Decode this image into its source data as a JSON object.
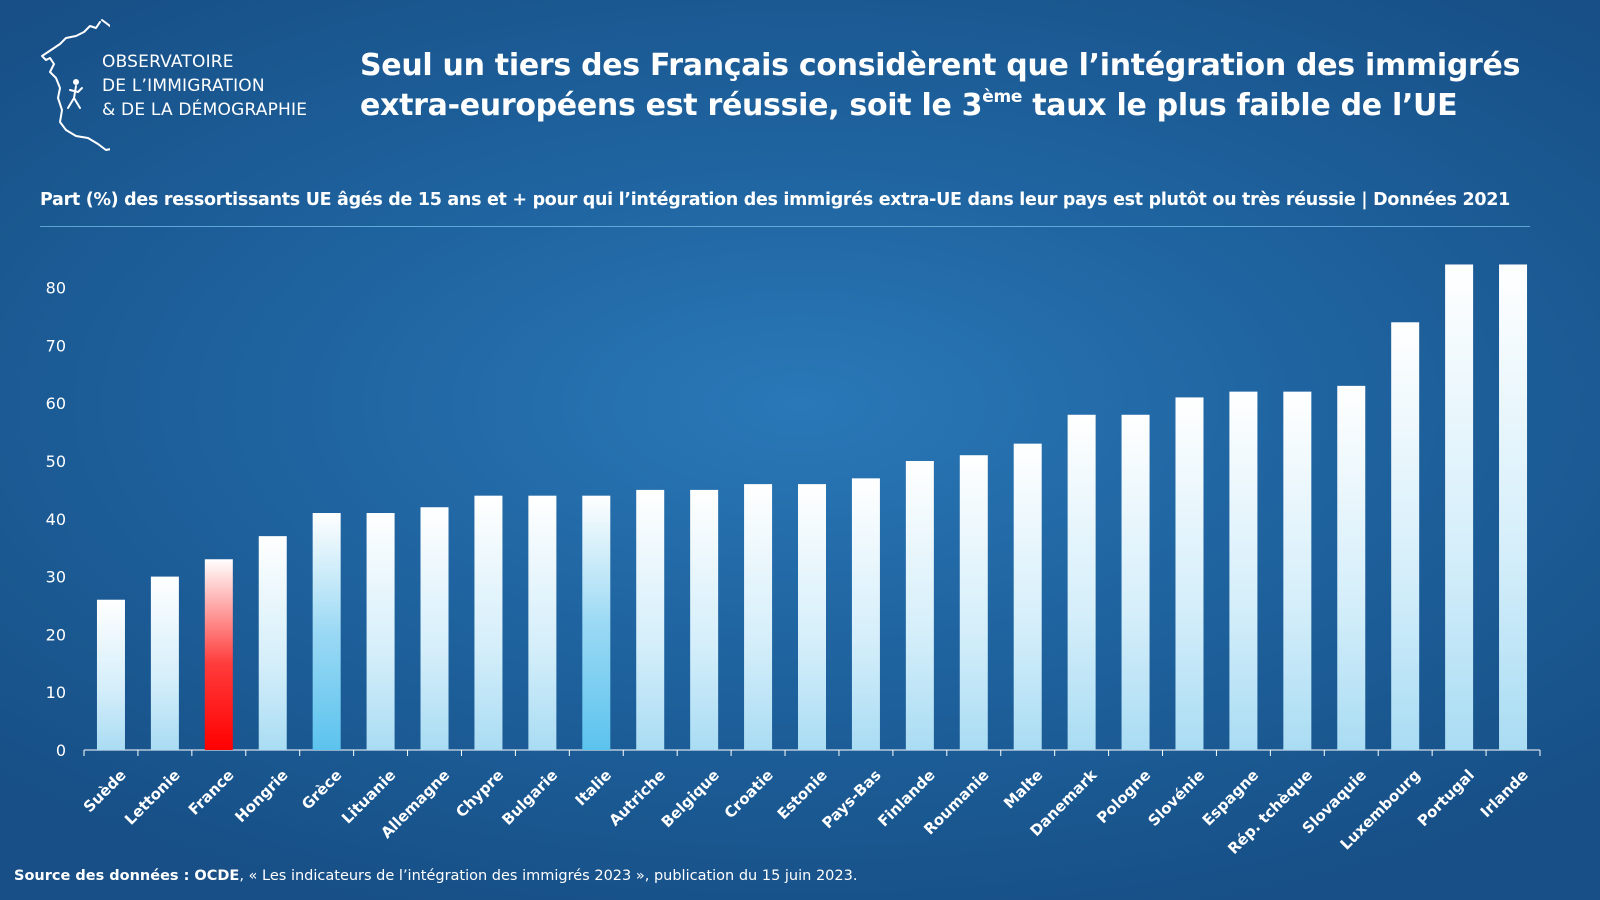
{
  "logo": {
    "line1": "OBSERVATOIRE",
    "line2": "DE L’IMMIGRATION",
    "line3": "& DE LA DÉMOGRAPHIE"
  },
  "header": {
    "title_line1": "Seul un tiers des Français considèrent que l’intégration des immigrés",
    "title_line2_pre": "extra-européens est réussie, soit le 3",
    "title_line2_sup": "ème",
    "title_line2_post": " taux le plus faible de l’UE"
  },
  "subtitle": "Part (%) des ressortissants UE âgés de 15 ans et + pour qui l’intégration des immigrés extra-UE dans leur pays est plutôt ou très réussie | Données 2021",
  "source": {
    "label": "Source des données : OCDE",
    "text": ", « Les indicateurs de l’intégration des immigrés 2023 », publication du 15 juin 2023."
  },
  "colors": {
    "default_bar_top": "#ffffff",
    "default_bar_bottom": "#a9dcf3",
    "highlight_france": "#ff0000",
    "highlight_blue": "#5cc3ee"
  },
  "chart_data": {
    "type": "bar",
    "title": "Part (%) des ressortissants UE âgés de 15 ans et + pour qui l’intégration des immigrés extra-UE dans leur pays est plutôt ou très réussie | Données 2021",
    "xlabel": "",
    "ylabel": "",
    "ylim": [
      0,
      85
    ],
    "yticks": [
      0,
      10,
      20,
      30,
      40,
      50,
      60,
      70,
      80
    ],
    "categories": [
      "Suède",
      "Lettonie",
      "France",
      "Hongrie",
      "Grèce",
      "Lituanie",
      "Allemagne",
      "Chypre",
      "Bulgarie",
      "Italie",
      "Autriche",
      "Belgique",
      "Croatie",
      "Estonie",
      "Pays-Bas",
      "Finlande",
      "Roumanie",
      "Malte",
      "Danemark",
      "Pologne",
      "Slovénie",
      "Espagne",
      "Rép. tchèque",
      "Slovaquie",
      "Luxembourg",
      "Portugal",
      "Irlande"
    ],
    "values": [
      26,
      30,
      33,
      37,
      41,
      41,
      42,
      44,
      44,
      44,
      45,
      45,
      46,
      46,
      47,
      50,
      51,
      53,
      58,
      58,
      61,
      62,
      62,
      63,
      74,
      84,
      84
    ],
    "highlights": {
      "France": "red",
      "Grèce": "blue",
      "Italie": "blue"
    },
    "grid": false,
    "legend": "none"
  }
}
